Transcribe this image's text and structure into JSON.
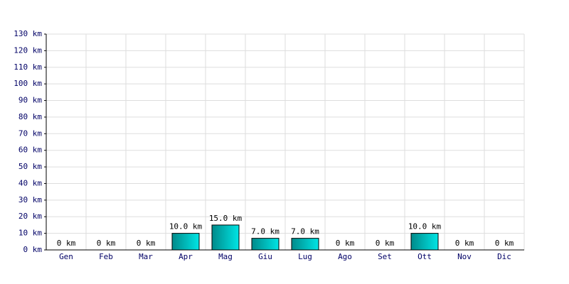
{
  "chart_data": {
    "type": "bar",
    "categories": [
      "Gen",
      "Feb",
      "Mar",
      "Apr",
      "Mag",
      "Giu",
      "Lug",
      "Ago",
      "Set",
      "Ott",
      "Nov",
      "Dic"
    ],
    "values": [
      0,
      0,
      0,
      10,
      15,
      7,
      7,
      0,
      0,
      10,
      0,
      0
    ],
    "value_labels": [
      "0 km",
      "0 km",
      "0 km",
      "10.0 km",
      "15.0 km",
      "7.0 km",
      "7.0 km",
      "0 km",
      "0 km",
      "10.0 km",
      "0 km",
      "0 km"
    ],
    "color": "#00e5e5",
    "ylim": [
      0,
      130
    ],
    "yticks": [
      {
        "value": 0,
        "label": "0 km"
      },
      {
        "value": 10,
        "label": "10 km"
      },
      {
        "value": 20,
        "label": "20 km"
      },
      {
        "value": 30,
        "label": "30 km"
      },
      {
        "value": 40,
        "label": "40 km"
      },
      {
        "value": 50,
        "label": "50 km"
      },
      {
        "value": 60,
        "label": "60 km"
      },
      {
        "value": 70,
        "label": "70 km"
      },
      {
        "value": 80,
        "label": "80 km"
      },
      {
        "value": 90,
        "label": "90 km"
      },
      {
        "value": 100,
        "label": "100 km"
      },
      {
        "value": 110,
        "label": "110 km"
      },
      {
        "value": 120,
        "label": "120 km"
      },
      {
        "value": 130,
        "label": "130 km"
      }
    ],
    "grid": true
  }
}
